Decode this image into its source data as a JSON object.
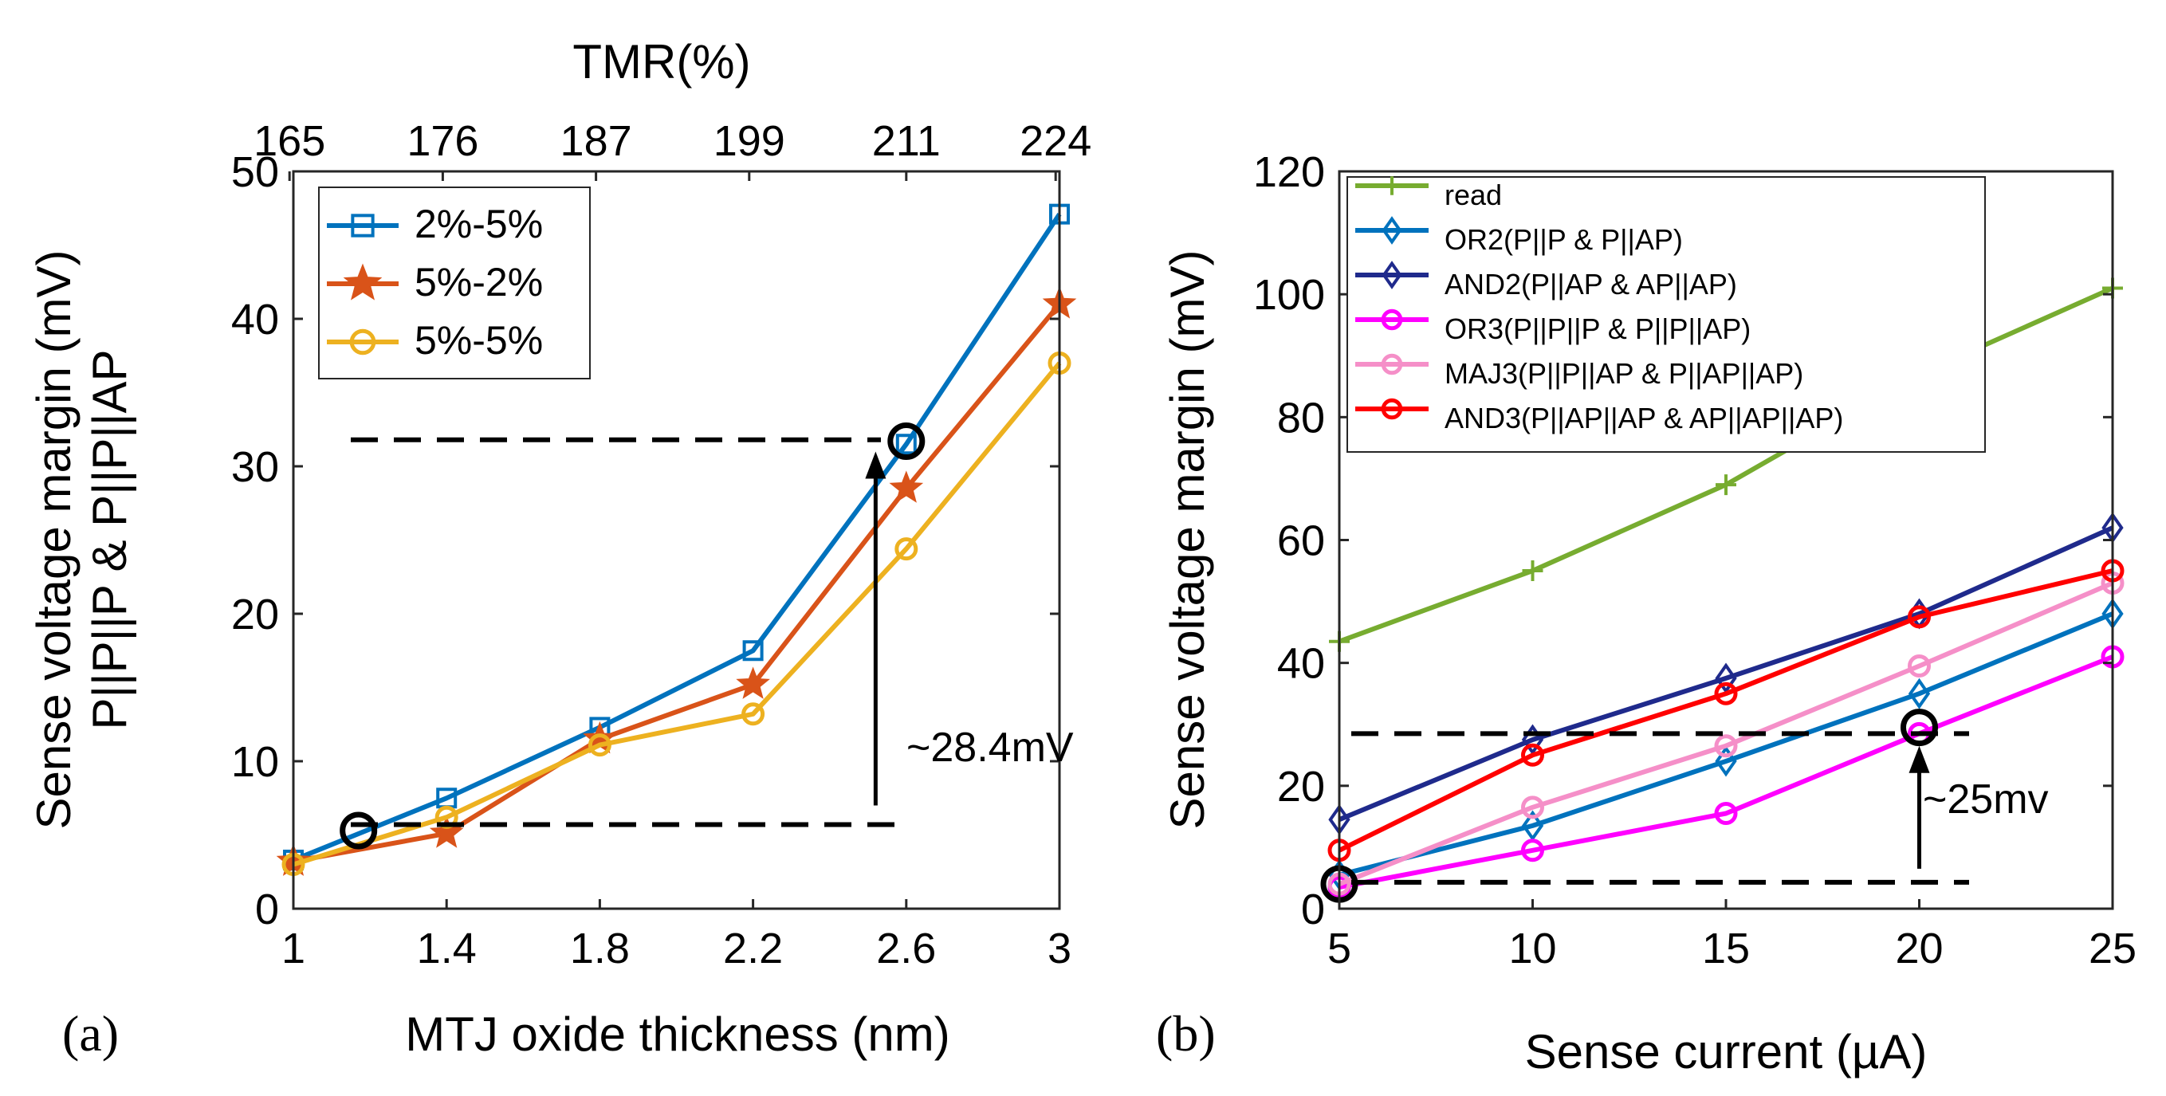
{
  "chart_data": [
    {
      "panel": "(a)",
      "type": "line",
      "xlabel": "MTJ oxide thickness (nm)",
      "ylabel": [
        "Sense voltage margin (mV)",
        "P||P||P & P||P||AP"
      ],
      "top_xlabel": "TMR(%)",
      "x": [
        1,
        1.4,
        1.8,
        2.2,
        2.6,
        3
      ],
      "xlim": [
        1,
        3
      ],
      "ylim": [
        0,
        50
      ],
      "xticks": [
        1,
        1.4,
        1.8,
        2.2,
        2.6,
        3
      ],
      "xtick_labels": [
        "1",
        "1.4",
        "1.8",
        "2.2",
        "2.6",
        "3"
      ],
      "yticks": [
        0,
        10,
        20,
        30,
        40,
        50
      ],
      "top_ticks": [
        0.99,
        1.39,
        1.79,
        2.19,
        2.6,
        2.99
      ],
      "top_tick_labels": [
        "165",
        "176",
        "187",
        "199",
        "211",
        "224"
      ],
      "series": [
        {
          "name": "2%-5%",
          "color": "#0072BD",
          "marker": "square",
          "values": [
            3.3,
            7.5,
            12.3,
            17.5,
            31.5,
            47.1
          ]
        },
        {
          "name": "5%-2%",
          "color": "#D95319",
          "marker": "star",
          "values": [
            3.2,
            5.1,
            11.5,
            15.2,
            28.5,
            41.0
          ]
        },
        {
          "name": "5%-5%",
          "color": "#EDB120",
          "marker": "circle",
          "values": [
            3.0,
            6.2,
            11.1,
            13.2,
            24.4,
            37.0
          ]
        }
      ],
      "annotations": {
        "arrow_label": "~28.4mV",
        "hline_high": 31.8,
        "hline_low": 5.7,
        "circles": [
          {
            "x": 1.17,
            "y": 5.3
          },
          {
            "x": 2.6,
            "y": 31.7
          }
        ],
        "arrow_x": 2.52,
        "arrow_from": 7.0,
        "arrow_to": 31.0
      }
    },
    {
      "panel": "(b)",
      "type": "line",
      "xlabel": "Sense current (µA)",
      "ylabel": "Sense voltage margin (mV)",
      "x": [
        5,
        10,
        15,
        20,
        25
      ],
      "xlim": [
        5,
        25
      ],
      "ylim": [
        0,
        120
      ],
      "xticks": [
        5,
        10,
        15,
        20,
        25
      ],
      "yticks": [
        0,
        20,
        40,
        60,
        80,
        100,
        120
      ],
      "series": [
        {
          "name": "read",
          "color": "#77AC30",
          "marker": "plus",
          "values": [
            43.5,
            55,
            69,
            87,
            101
          ]
        },
        {
          "name": "OR2(P||P & P||AP)",
          "color": "#0072BD",
          "marker": "diamond",
          "values": [
            5.5,
            13.5,
            24,
            35,
            48
          ]
        },
        {
          "name": "AND2(P||AP & AP||AP)",
          "color": "#1F2A8C",
          "marker": "diamond",
          "values": [
            14.5,
            27.5,
            37.5,
            48,
            62
          ]
        },
        {
          "name": "OR3(P||P||P & P||P||AP)",
          "color": "#FF00FF",
          "marker": "circle",
          "values": [
            3.5,
            9.5,
            15.5,
            28.5,
            41
          ]
        },
        {
          "name": "MAJ3(P||P||AP & P||AP||AP)",
          "color": "#F58FC8",
          "marker": "circle",
          "values": [
            4.0,
            16.5,
            26.5,
            39.5,
            53
          ]
        },
        {
          "name": "AND3(P||AP||AP & AP||AP||AP)",
          "color": "#FF0000",
          "marker": "circle",
          "values": [
            9.5,
            25,
            35,
            47.5,
            55
          ]
        }
      ],
      "annotations": {
        "arrow_label": "~25mv",
        "hline_high": 28.5,
        "hline_low": 4.3,
        "circles": [
          {
            "x": 5,
            "y": 4.0
          },
          {
            "x": 20,
            "y": 29.5
          }
        ],
        "arrow_x": 20,
        "arrow_from": 6.5,
        "arrow_to": 26.5
      }
    }
  ]
}
